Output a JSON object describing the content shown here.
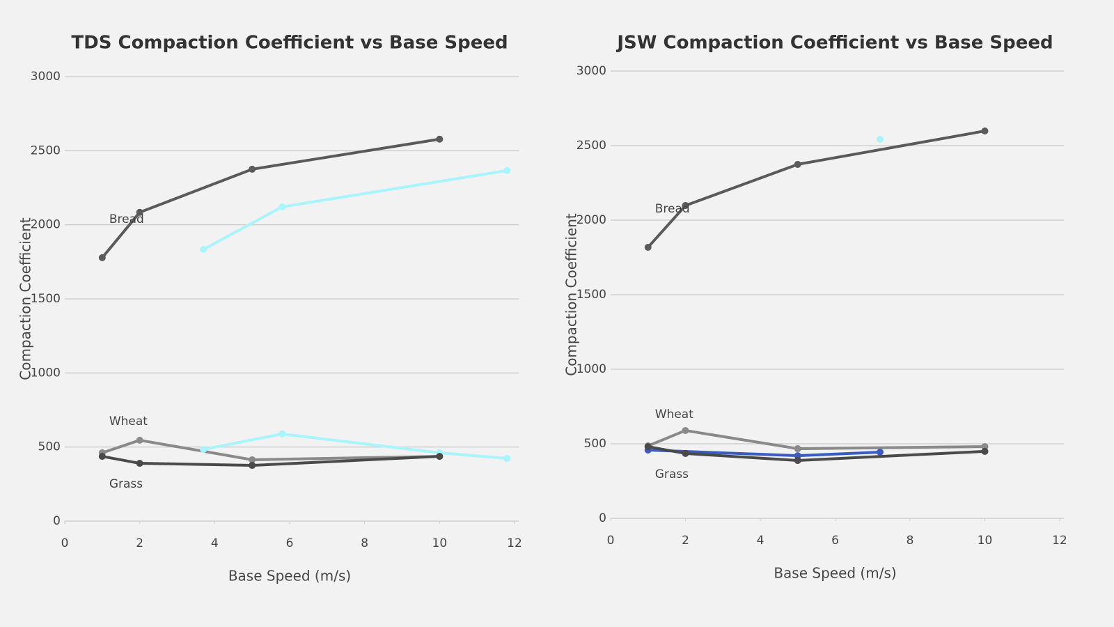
{
  "chart_data": [
    {
      "type": "line",
      "title": "TDS Compaction Coefficient vs Base Speed",
      "xlabel": "Base Speed (m/s)",
      "ylabel": "Compaction Coefficient",
      "xlim": [
        0,
        12
      ],
      "xticks": [
        0,
        2,
        4,
        6,
        8,
        10,
        12
      ],
      "ylim": [
        0,
        3000
      ],
      "yticks": [
        0,
        500,
        1000,
        1500,
        2000,
        2500,
        3000
      ],
      "grid": true,
      "series": [
        {
          "name": "Bread",
          "color": "#5a5a5a",
          "x": [
            1,
            2,
            5,
            10
          ],
          "values": [
            1778,
            2084,
            2375,
            2578
          ]
        },
        {
          "color": "#a8f4ff",
          "x": [
            3.7,
            5.8,
            11.8
          ],
          "values": [
            1834,
            2121,
            2366
          ]
        },
        {
          "name": "Wheat",
          "color": "#8a8a8a",
          "x": [
            1,
            2,
            5,
            10
          ],
          "values": [
            461,
            546,
            414,
            437
          ]
        },
        {
          "color": "#a8f4ff",
          "x": [
            3.7,
            5.8,
            10,
            11.8
          ],
          "values": [
            484,
            588,
            461,
            423
          ]
        },
        {
          "name": "Grass",
          "color": "#4a4a4a",
          "x": [
            1,
            2,
            5,
            10
          ],
          "values": [
            437,
            390,
            376,
            437
          ]
        }
      ]
    },
    {
      "type": "line",
      "title": "JSW Compaction Coefficient vs Base Speed",
      "xlabel": "Base Speed (m/s)",
      "ylabel": "Compaction Coefficient",
      "xlim": [
        0,
        12
      ],
      "xticks": [
        0,
        2,
        4,
        6,
        8,
        10,
        12
      ],
      "ylim": [
        0,
        3000
      ],
      "yticks": [
        0,
        500,
        1000,
        1500,
        2000,
        2500,
        3000
      ],
      "grid": true,
      "series": [
        {
          "name": "Bread",
          "color": "#5a5a5a",
          "x": [
            1,
            2,
            5,
            10
          ],
          "values": [
            1818,
            2098,
            2374,
            2598
          ]
        },
        {
          "color": "#a8f4ff",
          "x": [
            7.2
          ],
          "values": [
            2542
          ]
        },
        {
          "name": "Wheat",
          "color": "#8a8a8a",
          "x": [
            1,
            2,
            5,
            10
          ],
          "values": [
            486,
            589,
            467,
            481
          ]
        },
        {
          "color": "#3a5bbf",
          "x": [
            1,
            5,
            7.2
          ],
          "values": [
            458,
            420,
            444
          ]
        },
        {
          "name": "Grass",
          "color": "#4a4a4a",
          "x": [
            1,
            2,
            5,
            10
          ],
          "values": [
            481,
            435,
            388,
            449
          ]
        }
      ]
    }
  ]
}
